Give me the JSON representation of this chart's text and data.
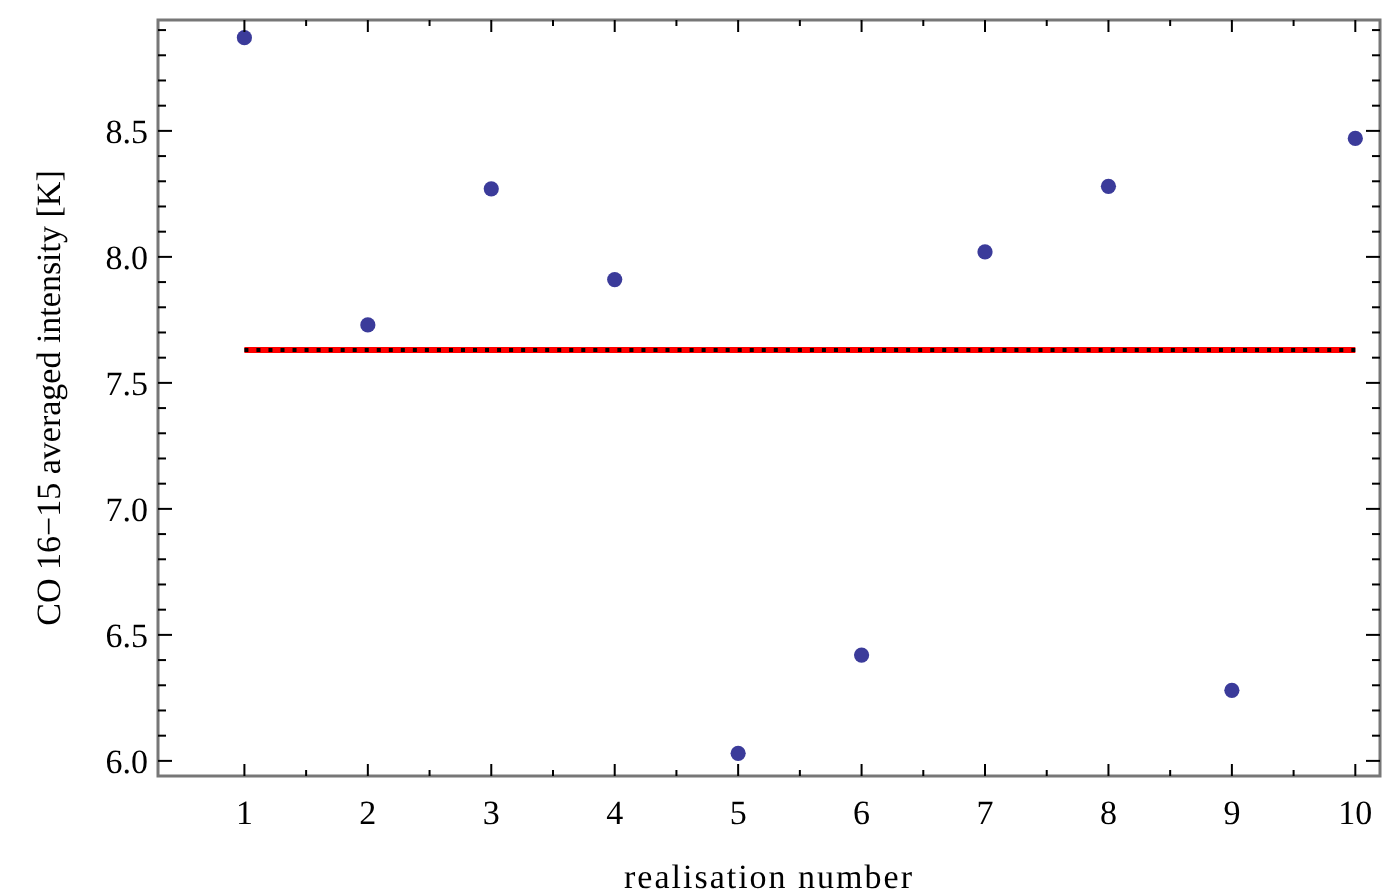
{
  "chart_data": {
    "type": "scatter",
    "xlabel": "realisation number",
    "ylabel": "CO 16−15 averaged intensity [K]",
    "xlim": [
      0.3,
      10.2
    ],
    "ylim": [
      5.94,
      8.94
    ],
    "xticks": [
      1,
      {
        "value": 1.5,
        "label": null
      },
      2,
      {
        "value": 2.5,
        "label": null
      },
      3,
      {
        "value": 3.5,
        "label": null
      },
      4,
      {
        "value": 4.5,
        "label": null
      },
      5,
      {
        "value": 5.5,
        "label": null
      },
      6,
      {
        "value": 6.5,
        "label": null
      },
      7,
      {
        "value": 7.5,
        "label": null
      },
      8,
      {
        "value": 8.5,
        "label": null
      },
      9,
      {
        "value": 9.5,
        "label": null
      },
      10
    ],
    "yticks": [
      {
        "value": 6.0,
        "label": "6.0"
      },
      {
        "value": 6.1,
        "label": null
      },
      {
        "value": 6.2,
        "label": null
      },
      {
        "value": 6.3,
        "label": null
      },
      {
        "value": 6.4,
        "label": null
      },
      {
        "value": 6.5,
        "label": "6.5"
      },
      {
        "value": 6.6,
        "label": null
      },
      {
        "value": 6.7,
        "label": null
      },
      {
        "value": 6.8,
        "label": null
      },
      {
        "value": 6.9,
        "label": null
      },
      {
        "value": 7.0,
        "label": "7.0"
      },
      {
        "value": 7.1,
        "label": null
      },
      {
        "value": 7.2,
        "label": null
      },
      {
        "value": 7.3,
        "label": null
      },
      {
        "value": 7.4,
        "label": null
      },
      {
        "value": 7.5,
        "label": "7.5"
      },
      {
        "value": 7.6,
        "label": null
      },
      {
        "value": 7.7,
        "label": null
      },
      {
        "value": 7.8,
        "label": null
      },
      {
        "value": 7.9,
        "label": null
      },
      {
        "value": 8.0,
        "label": "8.0"
      },
      {
        "value": 8.1,
        "label": null
      },
      {
        "value": 8.2,
        "label": null
      },
      {
        "value": 8.3,
        "label": null
      },
      {
        "value": 8.4,
        "label": null
      },
      {
        "value": 8.5,
        "label": "8.5"
      },
      {
        "value": 8.6,
        "label": null
      },
      {
        "value": 8.7,
        "label": null
      },
      {
        "value": 8.8,
        "label": null
      },
      {
        "value": 8.9,
        "label": null
      }
    ],
    "grid": false,
    "series": [
      {
        "type": "line",
        "x": [
          1,
          10
        ],
        "values": [
          7.63,
          7.63
        ],
        "color": "#ff0000",
        "line_style": "solid",
        "marker": "none"
      },
      {
        "type": "line",
        "x": [
          1,
          10
        ],
        "values": [
          7.63,
          7.63
        ],
        "color": "#000000",
        "line_style": "dotted",
        "marker": "none"
      },
      {
        "marker": "circle",
        "x": [
          1,
          2,
          3,
          4,
          5,
          6,
          7,
          8,
          9,
          10
        ],
        "values": [
          8.87,
          7.73,
          8.27,
          7.91,
          6.03,
          6.42,
          8.02,
          8.28,
          6.28,
          8.47
        ],
        "color": "#3b3b9a"
      }
    ]
  }
}
